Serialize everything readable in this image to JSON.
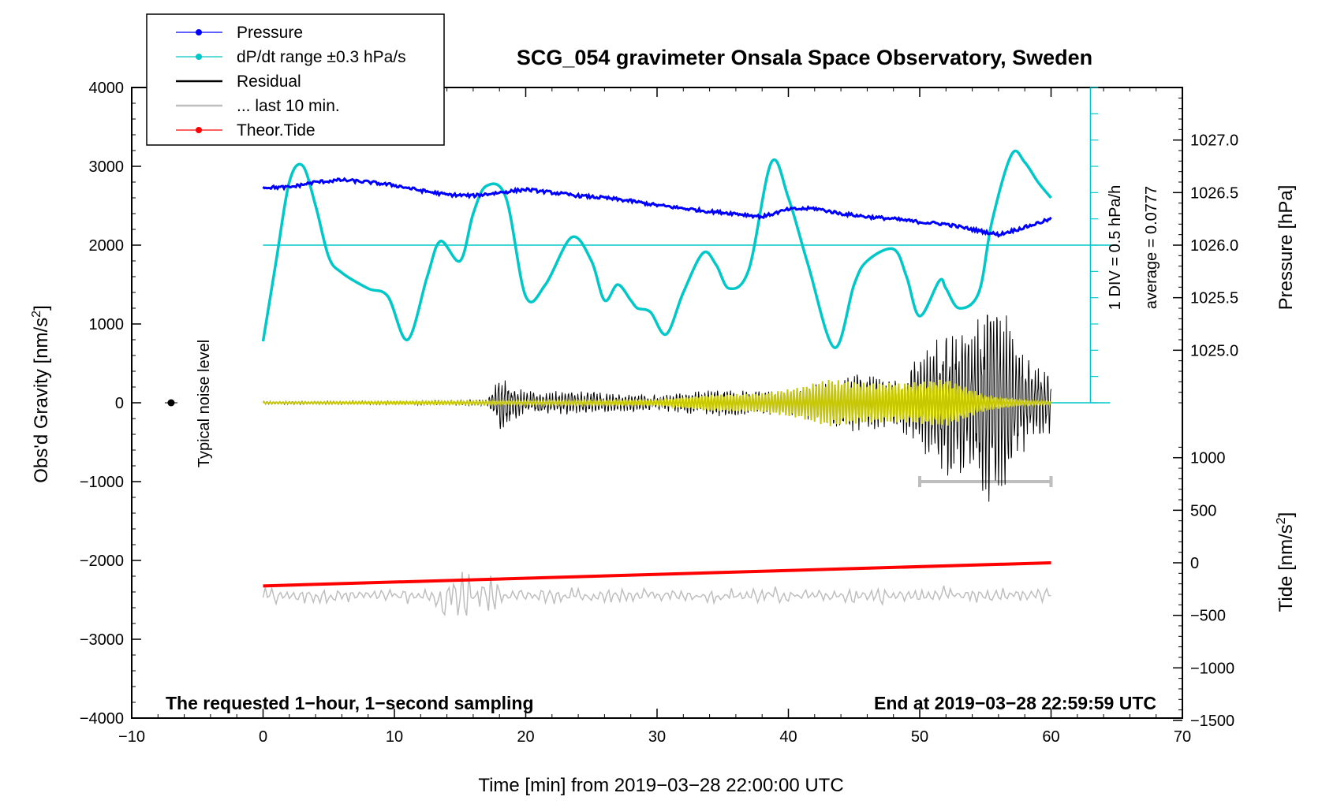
{
  "chart_data": {
    "type": "line",
    "title": "SCG_054 gravimeter Onsala Space Observatory, Sweden",
    "xlabel": "Time [min] from 2019−03−28 22:00:00 UTC",
    "ylabel_left": "Obs'd Gravity [nm/s",
    "ylabel_left_sup": "2",
    "ylabel_left_close": "]",
    "ylabel_pressure": "Pressure [hPa]",
    "ylabel_tide": "Tide [nm/s",
    "ylabel_tide_sup": "2",
    "ylabel_tide_close": "]",
    "xlim": [
      -10,
      70
    ],
    "ylim": [
      -4000,
      4000
    ],
    "x_ticks": [
      "−10",
      "0",
      "10",
      "20",
      "30",
      "40",
      "50",
      "60",
      "70"
    ],
    "y_ticks_left": [
      "4000",
      "3000",
      "2000",
      "1000",
      "0",
      "−1000",
      "−2000",
      "−3000",
      "−4000"
    ],
    "y_ticks_pressure": [
      "1027.0",
      "1026.5",
      "1026.0",
      "1025.5",
      "1025.0"
    ],
    "y_ticks_tide": [
      "1000",
      "500",
      "0",
      "−500",
      "−1000",
      "−1500"
    ],
    "legend": [
      {
        "label": "Pressure",
        "color": "#0000ff",
        "marker": true
      },
      {
        "label": "dP/dt range ±0.3 hPa/s",
        "color": "#00c8c8",
        "marker": true
      },
      {
        "label": "Residual",
        "color": "#000000",
        "marker": false
      },
      {
        "label": "... last 10 min.",
        "color": "#bebebe",
        "marker": false
      },
      {
        "label": "Theor.Tide",
        "color": "#ff0000",
        "marker": true
      }
    ],
    "annotations": {
      "noise": "Typical noise level",
      "div": "1 DIV = 0.5 hPa/h",
      "average": "average = 0.0777",
      "bottom_left": "The requested 1−hour, 1−second sampling",
      "bottom_right": "End at 2019−03−28 22:59:59 UTC"
    },
    "series": [
      {
        "name": "Pressure",
        "units": "hPa",
        "color": "#0000ff",
        "t": [
          0,
          2,
          4,
          6,
          8,
          10,
          12,
          14,
          16,
          18,
          20,
          22,
          24,
          26,
          28,
          30,
          32,
          34,
          36,
          38,
          40,
          42,
          44,
          46,
          48,
          50,
          52,
          54,
          56,
          58,
          60
        ],
        "values": [
          1026.55,
          1026.55,
          1026.6,
          1026.62,
          1026.6,
          1026.57,
          1026.52,
          1026.48,
          1026.47,
          1026.5,
          1026.53,
          1026.5,
          1026.47,
          1026.45,
          1026.42,
          1026.38,
          1026.35,
          1026.32,
          1026.3,
          1026.27,
          1026.34,
          1026.35,
          1026.3,
          1026.27,
          1026.25,
          1026.22,
          1026.2,
          1026.15,
          1026.1,
          1026.17,
          1026.25
        ]
      },
      {
        "name": "dP/dt range ±0.3 hPa/s",
        "units": "hPa/h",
        "color": "#00c8c8",
        "baseline": 2000,
        "t": [
          0,
          1,
          2,
          3,
          4,
          5,
          6,
          8,
          9.5,
          11,
          12.5,
          13.5,
          15,
          16,
          17,
          18.5,
          20,
          21.5,
          23.5,
          25,
          26,
          27,
          28,
          28.5,
          29.5,
          30.7,
          32,
          33.5,
          34.5,
          35.5,
          37,
          38.7,
          40,
          41.5,
          43.5,
          45,
          46,
          48,
          49,
          50,
          51.5,
          52,
          53,
          54.5,
          55.5,
          57,
          58,
          59,
          60
        ],
        "values": [
          780,
          1800,
          2800,
          3010,
          2500,
          1850,
          1650,
          1450,
          1350,
          800,
          1600,
          2050,
          1800,
          2400,
          2750,
          2600,
          1350,
          1500,
          2100,
          1800,
          1300,
          1500,
          1300,
          1200,
          1150,
          870,
          1400,
          1900,
          1750,
          1450,
          1700,
          3050,
          2600,
          1750,
          700,
          1500,
          1800,
          1950,
          1600,
          1100,
          1550,
          1450,
          1200,
          1400,
          2300,
          3150,
          3050,
          2800,
          2600
        ]
      },
      {
        "name": "Residual",
        "units": "nm/s2",
        "color": "#000000",
        "t": [
          0,
          10,
          17,
          18,
          20,
          25,
          30,
          35,
          40,
          42,
          45,
          48,
          50,
          52,
          54,
          55.5,
          57,
          58,
          59,
          60
        ],
        "amplitude": [
          20,
          25,
          40,
          350,
          150,
          150,
          100,
          180,
          150,
          250,
          400,
          300,
          600,
          1000,
          900,
          1500,
          1000,
          600,
          450,
          400
        ]
      },
      {
        "name": "Filtered residual",
        "units": "nm/s2",
        "color": "#c8c800",
        "t": [
          0,
          30,
          34,
          38,
          41,
          43,
          46,
          49,
          52,
          55,
          58,
          60
        ],
        "amplitude": [
          10,
          30,
          100,
          120,
          200,
          300,
          250,
          250,
          300,
          100,
          30,
          20
        ]
      },
      {
        "name": "... last 10 min.",
        "units": "nm/s2",
        "color": "#bebebe",
        "t_range": [
          50,
          60
        ],
        "level": -1000,
        "band_level": -2450,
        "band_amplitude": [
          50,
          300
        ]
      },
      {
        "name": "Theor.Tide",
        "units": "nm/s2",
        "color": "#ff0000",
        "t": [
          0,
          60
        ],
        "values": [
          -220,
          0
        ]
      }
    ],
    "noise_marker": {
      "t": -7,
      "value": 0
    }
  }
}
